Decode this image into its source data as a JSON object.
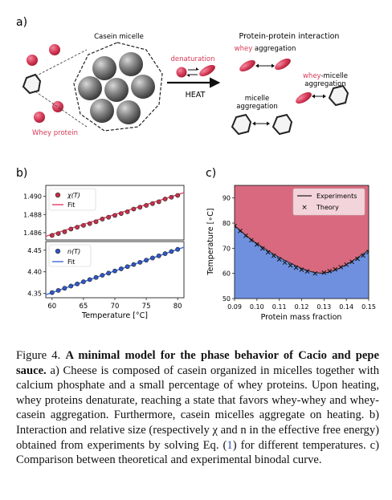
{
  "panel_a": {
    "label": "a)",
    "casein_title": "Casein micelle",
    "whey_label": "Whey protein",
    "denaturation_label": "denaturation",
    "heat_label": "HEAT",
    "ppi_title": "Protein-protein interaction",
    "whey_agg_label": "whey aggregation",
    "wm_agg_line1": "whey-micelle",
    "wm_agg_line2": "aggregation",
    "m_agg_line1": "micelle",
    "m_agg_line2": "aggregation"
  },
  "panel_b": {
    "label": "b)"
  },
  "panel_c": {
    "label": "c)"
  },
  "colors": {
    "whey": "#d63a56",
    "fit_red": "#e04e6b",
    "fit_blue": "#4a72d8",
    "region_top": "#d8697f",
    "region_bottom": "#6f90df"
  },
  "chart_data": [
    {
      "id": "chi",
      "type": "scatter",
      "legend": [
        "χ(T)",
        "Fit"
      ],
      "x": [
        60,
        61,
        62,
        63,
        64,
        65,
        66,
        67,
        68,
        69,
        70,
        71,
        72,
        73,
        74,
        75,
        76,
        77,
        78,
        79,
        80
      ],
      "y": [
        1.4857,
        1.4859,
        1.4861,
        1.4864,
        1.4866,
        1.4868,
        1.487,
        1.4872,
        1.4875,
        1.4877,
        1.4879,
        1.4881,
        1.4883,
        1.4886,
        1.4888,
        1.489,
        1.4892,
        1.4894,
        1.4897,
        1.4899,
        1.4901
      ],
      "fit": [
        [
          59,
          1.4856
        ],
        [
          81,
          1.4904
        ]
      ],
      "ylim": [
        1.4852,
        1.4912
      ],
      "xlim": [
        59,
        81
      ],
      "yticks": [
        1.486,
        1.488,
        1.49
      ],
      "ytick_labels": [
        "1.486",
        "1.488",
        "1.490"
      ]
    },
    {
      "id": "n",
      "type": "scatter",
      "legend": [
        "n(T)",
        "Fit"
      ],
      "x": [
        60,
        61,
        62,
        63,
        64,
        65,
        66,
        67,
        68,
        69,
        70,
        71,
        72,
        73,
        74,
        75,
        76,
        77,
        78,
        79,
        80
      ],
      "y": [
        4.352,
        4.357,
        4.362,
        4.367,
        4.372,
        4.377,
        4.382,
        4.387,
        4.392,
        4.397,
        4.402,
        4.407,
        4.412,
        4.417,
        4.422,
        4.427,
        4.432,
        4.437,
        4.442,
        4.447,
        4.452
      ],
      "fit": [
        [
          59,
          4.347
        ],
        [
          81,
          4.457
        ]
      ],
      "ylim": [
        4.34,
        4.47
      ],
      "xlim": [
        59,
        81
      ],
      "yticks": [
        4.35,
        4.4,
        4.45
      ],
      "ytick_labels": [
        "4.35",
        "4.40",
        "4.45"
      ],
      "xticks": [
        60,
        65,
        70,
        75,
        80
      ],
      "xtick_labels": [
        "60",
        "65",
        "70",
        "75",
        "80"
      ],
      "xlabel": "Temperature [°C]"
    },
    {
      "id": "binodal",
      "type": "area",
      "legend": [
        "Experiments",
        "Theory"
      ],
      "x": [
        0.09,
        0.093,
        0.096,
        0.099,
        0.102,
        0.105,
        0.108,
        0.111,
        0.114,
        0.117,
        0.12,
        0.123,
        0.126,
        0.129,
        0.132,
        0.135,
        0.138,
        0.141,
        0.144,
        0.147,
        0.15
      ],
      "y": [
        79.0,
        76.7,
        74.5,
        72.5,
        70.7,
        69.0,
        67.4,
        65.9,
        64.5,
        63.2,
        62.0,
        61.0,
        60.3,
        60.1,
        60.5,
        61.3,
        62.5,
        64.0,
        65.7,
        67.4,
        69.2
      ],
      "theory_x": [
        0.09,
        0.0925,
        0.095,
        0.0975,
        0.1,
        0.1025,
        0.105,
        0.1075,
        0.11,
        0.1125,
        0.115,
        0.1175,
        0.12,
        0.1225,
        0.126,
        0.13,
        0.1325,
        0.135,
        0.1375,
        0.14,
        0.1425,
        0.145,
        0.1475,
        0.15
      ],
      "theory_y": [
        78.8,
        76.9,
        75.0,
        73.2,
        71.5,
        69.9,
        68.4,
        67.0,
        65.6,
        64.3,
        63.2,
        62.3,
        61.5,
        60.8,
        60.0,
        60.3,
        60.9,
        61.6,
        62.5,
        63.5,
        64.6,
        65.8,
        67.1,
        68.5
      ],
      "xlim": [
        0.09,
        0.15
      ],
      "ylim": [
        50,
        95
      ],
      "xticks": [
        0.09,
        0.1,
        0.11,
        0.12,
        0.13,
        0.14,
        0.15
      ],
      "xtick_labels": [
        "0.09",
        "0.10",
        "0.11",
        "0.12",
        "0.13",
        "0.14",
        "0.15"
      ],
      "yticks": [
        50,
        60,
        70,
        80,
        90
      ],
      "ytick_labels": [
        "50",
        "60",
        "70",
        "80",
        "90"
      ],
      "xlabel": "Protein mass fraction",
      "ylabel": "Temperature [∘C]"
    }
  ],
  "caption": {
    "fig_label": "Figure 4.",
    "bold_title": "A minimal model for the phase behavior of Cacio and pepe sauce.",
    "text_1": "a) Cheese is composed of casein organized in micelles together with calcium phosphate and a small percentage of whey proteins. Upon heating, whey proteins denaturate, reaching a state that favors whey-whey and whey-casein aggregation. Furthermore, casein micelles aggregate on heating. b) Interaction and relative size (respectively χ and n in the effective free energy) obtained from experiments by solving Eq. (",
    "eq_ref": "1",
    "text_2": ") for different temperatures. c) Comparison between theoretical and experimental binodal curve."
  }
}
